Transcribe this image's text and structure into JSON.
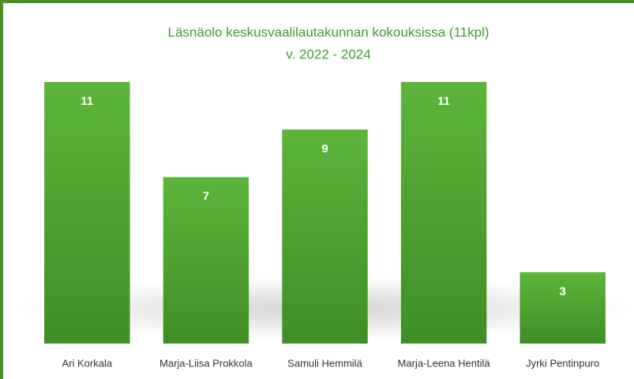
{
  "chart_data": {
    "type": "bar",
    "title": "Läsnäolo keskusvaalilautakunnan kokouksissa (11kpl)",
    "subtitle": "v. 2022 - 2024",
    "categories": [
      "Ari Korkala",
      "Marja-Liisa Prokkola",
      "Samuli Hemmilä",
      "Marja-Leena Hentilä",
      "Jyrki Pentinpuro"
    ],
    "values": [
      11,
      7,
      9,
      11,
      3
    ],
    "color": "#4f9e2f",
    "ylim": [
      0,
      11
    ]
  }
}
